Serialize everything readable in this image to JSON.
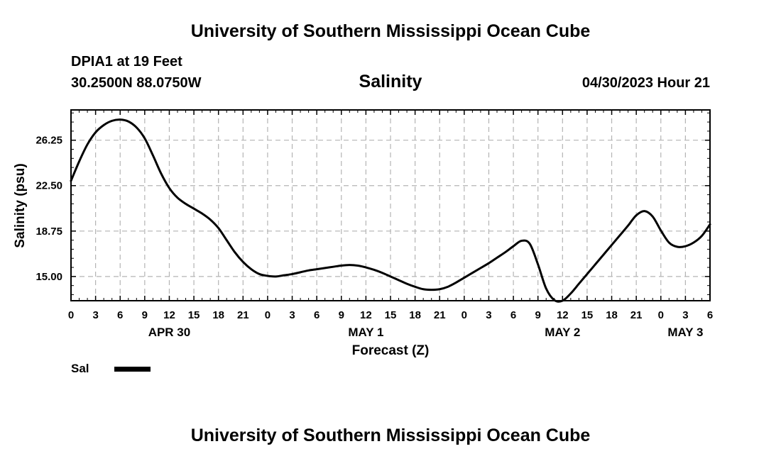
{
  "header": {
    "title": "University of Southern Mississippi Ocean Cube"
  },
  "station": {
    "name": "DPIA1 at 19 Feet",
    "coordinates": "30.2500N  88.0750W"
  },
  "forecast_time": "04/30/2023 Hour 21",
  "legend": {
    "label": "Sal",
    "color": "#000000"
  },
  "footer": {
    "title": "University of Southern Mississippi Ocean Cube"
  },
  "chart_data": {
    "type": "line",
    "title": "Salinity",
    "xlabel": "Forecast (Z)",
    "ylabel": "Salinity (psu)",
    "xlim": [
      0,
      78
    ],
    "ylim": [
      13.0,
      28.75
    ],
    "grid": true,
    "x_tick_values": [
      0,
      3,
      6,
      9,
      12,
      15,
      18,
      21,
      24,
      27,
      30,
      33,
      36,
      39,
      42,
      45,
      48,
      51,
      54,
      57,
      60,
      63,
      66,
      69,
      72,
      75,
      78
    ],
    "x_tick_labels": [
      "0",
      "3",
      "6",
      "9",
      "12",
      "15",
      "18",
      "21",
      "0",
      "3",
      "6",
      "9",
      "12",
      "15",
      "18",
      "21",
      "0",
      "3",
      "6",
      "9",
      "12",
      "15",
      "18",
      "21",
      "0",
      "3",
      "6"
    ],
    "day_labels": [
      {
        "x": 12,
        "label": "APR 30"
      },
      {
        "x": 36,
        "label": "MAY 1"
      },
      {
        "x": 60,
        "label": "MAY 2"
      },
      {
        "x": 75,
        "label": "MAY 3"
      }
    ],
    "y_ticks": [
      15.0,
      18.75,
      22.5,
      26.25
    ],
    "y_tick_labels": [
      "15.00",
      "18.75",
      "22.50",
      "26.25"
    ],
    "series": [
      {
        "name": "Sal",
        "color": "#000000",
        "x": [
          0,
          1,
          2,
          3,
          4,
          5,
          6,
          7,
          8,
          9,
          10,
          11,
          12,
          13,
          14,
          15,
          16,
          17,
          18,
          19,
          20,
          21,
          22,
          23,
          24,
          25,
          26,
          27,
          28,
          29,
          30,
          31,
          32,
          33,
          34,
          35,
          36,
          37,
          38,
          39,
          40,
          41,
          42,
          43,
          44,
          45,
          46,
          47,
          48,
          49,
          50,
          51,
          52,
          53,
          54,
          55,
          56,
          57,
          58,
          59,
          60,
          61,
          62,
          63,
          64,
          65,
          66,
          67,
          68,
          69,
          70,
          71,
          72,
          73,
          74,
          75,
          76,
          77,
          78
        ],
        "values": [
          22.9,
          24.5,
          25.9,
          26.9,
          27.5,
          27.85,
          27.95,
          27.8,
          27.3,
          26.4,
          25.0,
          23.5,
          22.3,
          21.5,
          21.0,
          20.6,
          20.2,
          19.7,
          19.0,
          18.0,
          17.0,
          16.2,
          15.6,
          15.2,
          15.05,
          15.0,
          15.1,
          15.2,
          15.35,
          15.5,
          15.6,
          15.7,
          15.8,
          15.9,
          15.95,
          15.9,
          15.75,
          15.55,
          15.3,
          15.0,
          14.7,
          14.4,
          14.15,
          13.95,
          13.9,
          13.95,
          14.15,
          14.5,
          14.9,
          15.3,
          15.7,
          16.1,
          16.55,
          17.0,
          17.5,
          17.95,
          17.7,
          16.0,
          14.0,
          13.05,
          13.0,
          13.6,
          14.4,
          15.2,
          16.0,
          16.8,
          17.6,
          18.4,
          19.2,
          20.05,
          20.4,
          19.95,
          18.8,
          17.8,
          17.45,
          17.5,
          17.8,
          18.35,
          19.3
        ]
      }
    ]
  }
}
